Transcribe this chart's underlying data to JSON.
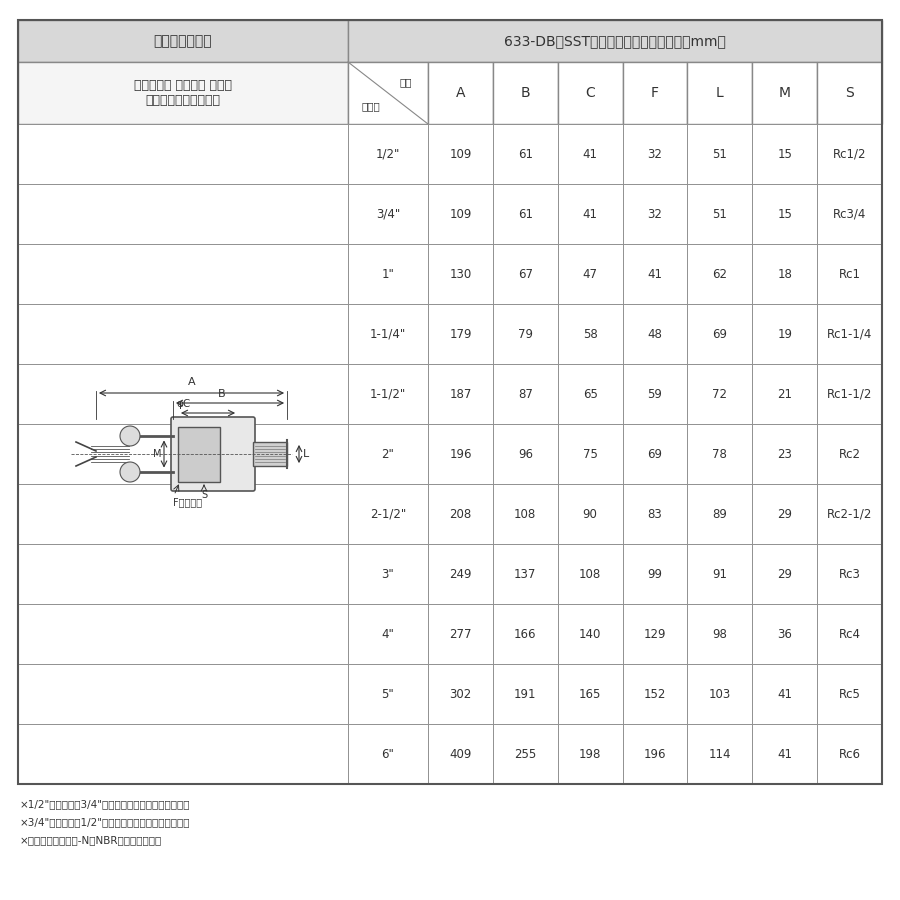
{
  "title_left": "カムアーム継手",
  "title_right": "633-DB　SST　サイズ別寸法表（単位：mm）",
  "subtitle_left": "カムロック カプラー メネジ\nステンレススチール製",
  "header_size": "位置\nサイズ",
  "columns": [
    "A",
    "B",
    "C",
    "F",
    "L",
    "M",
    "S"
  ],
  "rows": [
    {
      "size": "1/2\"",
      "A": 109,
      "B": 61,
      "C": 41,
      "F": 32,
      "L": 51,
      "M": 15,
      "S": "Rc1/2"
    },
    {
      "size": "3/4\"",
      "A": 109,
      "B": 61,
      "C": 41,
      "F": 32,
      "L": 51,
      "M": 15,
      "S": "Rc3/4"
    },
    {
      "size": "1\"",
      "A": 130,
      "B": 67,
      "C": 47,
      "F": 41,
      "L": 62,
      "M": 18,
      "S": "Rc1"
    },
    {
      "size": "1-1/4\"",
      "A": 179,
      "B": 79,
      "C": 58,
      "F": 48,
      "L": 69,
      "M": 19,
      "S": "Rc1-1/4"
    },
    {
      "size": "1-1/2\"",
      "A": 187,
      "B": 87,
      "C": 65,
      "F": 59,
      "L": 72,
      "M": 21,
      "S": "Rc1-1/2"
    },
    {
      "size": "2\"",
      "A": 196,
      "B": 96,
      "C": 75,
      "F": 69,
      "L": 78,
      "M": 23,
      "S": "Rc2"
    },
    {
      "size": "2-1/2\"",
      "A": 208,
      "B": 108,
      "C": 90,
      "F": 83,
      "L": 89,
      "M": 29,
      "S": "Rc2-1/2"
    },
    {
      "size": "3\"",
      "A": 249,
      "B": 137,
      "C": 108,
      "F": 99,
      "L": 91,
      "M": 29,
      "S": "Rc3"
    },
    {
      "size": "4\"",
      "A": 277,
      "B": 166,
      "C": 140,
      "F": 129,
      "L": 98,
      "M": 36,
      "S": "Rc4"
    },
    {
      "size": "5\"",
      "A": 302,
      "B": 191,
      "C": 165,
      "F": 152,
      "L": 103,
      "M": 41,
      "S": "Rc5"
    },
    {
      "size": "6\"",
      "A": 409,
      "B": 255,
      "C": 198,
      "F": 196,
      "L": 114,
      "M": 41,
      "S": "Rc6"
    }
  ],
  "footnotes": [
    "×1/2\"カプラーは3/4\"アダプターにも接続できます。",
    "×3/4\"カプラーは1/2\"アダプターにも接続できます。",
    "×ガスケットはブナ-N（NBR）を標準装備。"
  ],
  "bg_color": "#f5f5f5",
  "header_bg": "#d8d8d8",
  "white_bg": "#ffffff",
  "border_color": "#888888",
  "text_color": "#333333",
  "outer_border": "#555555"
}
